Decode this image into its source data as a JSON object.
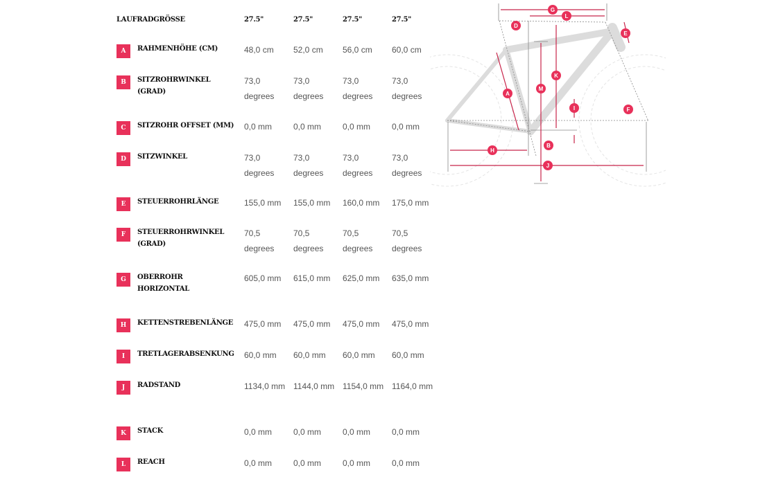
{
  "header": {
    "label": "LAUFRADGRÖSSE",
    "sizes": [
      "27.5\"",
      "27.5\"",
      "27.5\"",
      "27.5\""
    ]
  },
  "accent_color": "#e8315a",
  "rows": [
    {
      "letter": "A",
      "label": "RAHMENHÖHE (CM)",
      "values": [
        "48,0 cm",
        "52,0 cm",
        "56,0 cm",
        "60,0 cm"
      ]
    },
    {
      "letter": "B",
      "label": "SITZROHRWINKEL (GRAD)",
      "values": [
        "73,0 degrees",
        "73,0 degrees",
        "73,0 degrees",
        "73,0 degrees"
      ]
    },
    {
      "letter": "C",
      "label": "SITZROHR OFFSET (MM)",
      "values": [
        "0,0 mm",
        "0,0 mm",
        "0,0 mm",
        "0,0 mm"
      ]
    },
    {
      "letter": "D",
      "label": "SITZWINKEL",
      "values": [
        "73,0 degrees",
        "73,0 degrees",
        "73,0 degrees",
        "73,0 degrees"
      ]
    },
    {
      "letter": "E",
      "label": "STEUERROHRLÄNGE",
      "values": [
        "155,0 mm",
        "155,0 mm",
        "160,0 mm",
        "175,0 mm"
      ]
    },
    {
      "letter": "F",
      "label": "STEUERROHRWINKEL (GRAD)",
      "values": [
        "70,5 degrees",
        "70,5 degrees",
        "70,5 degrees",
        "70,5 degrees"
      ]
    },
    {
      "letter": "G",
      "label": "OBERROHR HORIZONTAL",
      "values": [
        "605,0 mm",
        "615,0 mm",
        "625,0 mm",
        "635,0 mm"
      ]
    },
    {
      "letter": "H",
      "label": "KETTENSTREBENLÄNGE",
      "values": [
        "475,0 mm",
        "475,0 mm",
        "475,0 mm",
        "475,0 mm"
      ]
    },
    {
      "letter": "I",
      "label": "TRETLAGERABSENKUNG",
      "values": [
        "60,0 mm",
        "60,0 mm",
        "60,0 mm",
        "60,0 mm"
      ]
    },
    {
      "letter": "J",
      "label": "RADSTAND",
      "values": [
        "1134,0 mm",
        "1144,0 mm",
        "1154,0 mm",
        "1164,0 mm"
      ]
    },
    {
      "letter": "K",
      "label": "STACK",
      "values": [
        "0,0 mm",
        "0,0 mm",
        "0,0 mm",
        "0,0 mm"
      ]
    },
    {
      "letter": "L",
      "label": "REACH",
      "values": [
        "0,0 mm",
        "0,0 mm",
        "0,0 mm",
        "0,0 mm"
      ]
    }
  ],
  "diagram": {
    "markers": [
      "A",
      "B",
      "D",
      "E",
      "F",
      "G",
      "H",
      "I",
      "J",
      "K",
      "L",
      "M"
    ]
  }
}
